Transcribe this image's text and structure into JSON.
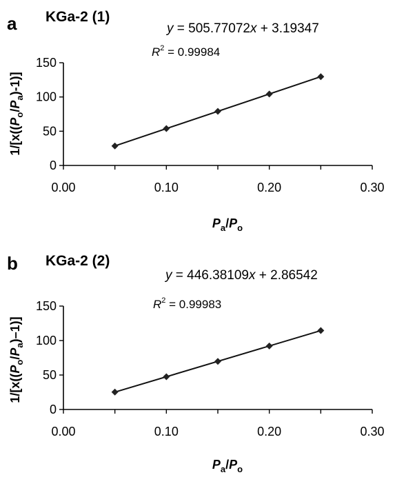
{
  "chart_data": [
    {
      "type": "scatter",
      "panel_label": "a",
      "title": "KGa-2 (1)",
      "equation": {
        "prefix": "y",
        "body": " = 505.77072",
        "var": "x",
        "suffix": " + 3.19347"
      },
      "r2": {
        "label": "R",
        "sup": "2",
        "value": " = 0.99984"
      },
      "xlabel": {
        "main": "P",
        "sub1": "a",
        "slash": "/",
        "main2": "P",
        "sub2": "o"
      },
      "ylabel": {
        "p1": "1/[x((",
        "P1": "P",
        "s1": "o",
        "slash": "/",
        "P2": "P",
        "s2": "a",
        "p2": ")-1)]"
      },
      "xlim": [
        0,
        0.3
      ],
      "ylim": [
        0,
        150
      ],
      "xticks": [
        "0.00",
        "0.10",
        "0.20",
        "0.30"
      ],
      "yticks": [
        "0",
        "50",
        "100",
        "150"
      ],
      "grid": false,
      "x": [
        0.05,
        0.1,
        0.15,
        0.2,
        0.25
      ],
      "y": [
        28.5,
        53.8,
        79.0,
        104.3,
        129.6
      ],
      "trendline": {
        "slope": 505.77072,
        "intercept": 3.19347
      }
    },
    {
      "type": "scatter",
      "panel_label": "b",
      "title": "KGa-2 (2)",
      "equation": {
        "prefix": "y",
        "body": " = 446.38109",
        "var": "x",
        "suffix": " + 2.86542"
      },
      "r2": {
        "label": "R",
        "sup": "2",
        "value": " = 0.99983"
      },
      "xlabel": {
        "main": "P",
        "sub1": "a",
        "slash": "/",
        "main2": "P",
        "sub2": "o"
      },
      "ylabel": {
        "p1": "1/[x((",
        "P1": "P",
        "s1": "o",
        "slash": "/",
        "P2": "P",
        "s2": "a",
        "p2": ")–1)]"
      },
      "xlim": [
        0,
        0.3
      ],
      "ylim": [
        0,
        150
      ],
      "xticks": [
        "0.00",
        "0.10",
        "0.20",
        "0.30"
      ],
      "yticks": [
        "0",
        "50",
        "100",
        "150"
      ],
      "grid": false,
      "x": [
        0.05,
        0.1,
        0.15,
        0.2,
        0.25
      ],
      "y": [
        25.2,
        47.5,
        69.8,
        92.1,
        114.5
      ],
      "trendline": {
        "slope": 446.38109,
        "intercept": 2.86542
      }
    }
  ]
}
